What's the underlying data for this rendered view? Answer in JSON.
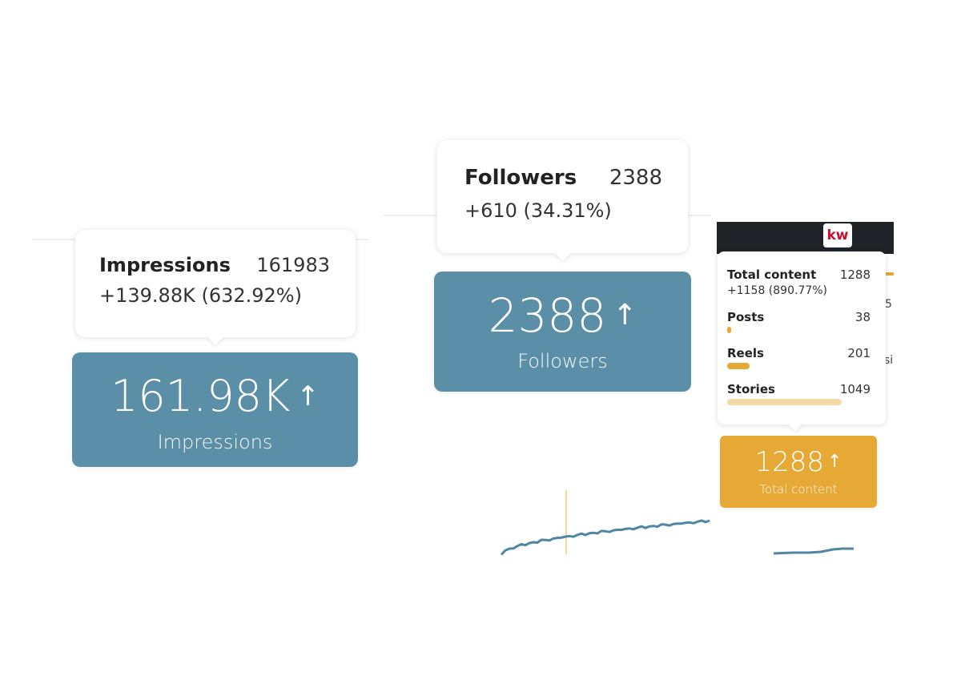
{
  "impressions": {
    "tooltip": {
      "label": "Impressions",
      "value": "161983",
      "change": "+139.88K (632.92%)"
    },
    "card": {
      "value": "161.98K",
      "label": "Impressions",
      "trend_icon": "arrow-up-icon"
    }
  },
  "followers": {
    "tooltip": {
      "label": "Followers",
      "value": "2388",
      "change": "+610 (34.31%)"
    },
    "card": {
      "value": "2388",
      "label": "Followers",
      "trend_icon": "arrow-up-icon"
    }
  },
  "total_content": {
    "tooltip": {
      "label": "Total content",
      "value": "1288",
      "change": "+1158 (890.77%)",
      "breakdown": [
        {
          "label": "Posts",
          "value": "38",
          "share": 0.03
        },
        {
          "label": "Reels",
          "value": "201",
          "share": 0.16
        },
        {
          "label": "Stories",
          "value": "1049",
          "share": 0.81
        }
      ]
    },
    "card": {
      "value": "1288",
      "label": "Total content",
      "trend_icon": "arrow-up-icon"
    }
  },
  "header": {
    "logo_text": "kw"
  },
  "peeking_text": {
    "right_top": "5",
    "right_mid": "si"
  },
  "colors": {
    "impressions_card": "#5b8fa8",
    "followers_card": "#5b8fa8",
    "total_content_card": "#e6a935",
    "posts_bar": "#e6a935",
    "reels_bar": "#e6a935",
    "stories_bar": "#f3d9a6",
    "trend_line": "#4f86a3",
    "marker_line": "#f0d9a0"
  }
}
